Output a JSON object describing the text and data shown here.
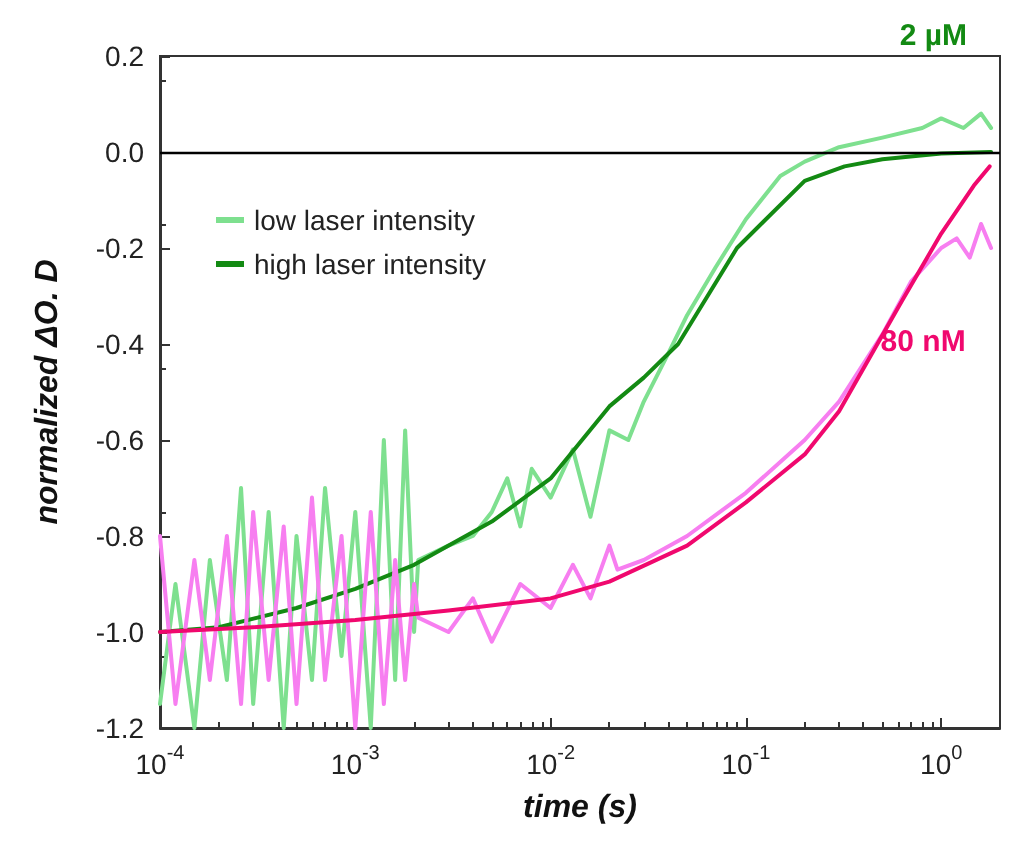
{
  "chart_data": {
    "type": "line",
    "xlabel": "time (s)",
    "ylabel": "normalized ΔO. D",
    "log": "x",
    "xlim": [
      0.0001,
      2
    ],
    "ylim": [
      -1.2,
      0.2
    ],
    "xticks": [
      {
        "value": 0.0001,
        "label": "10$^{-4}$"
      },
      {
        "value": 0.001,
        "label": "10$^{-3}$"
      },
      {
        "value": 0.01,
        "label": "10$^{-2}$"
      },
      {
        "value": 0.1,
        "label": "10$^{-1}$"
      },
      {
        "value": 1,
        "label": "10$^{0}$"
      }
    ],
    "yticks": [
      {
        "value": -1.2,
        "label": "-1.2"
      },
      {
        "value": -1,
        "label": "-1.0"
      },
      -0.8,
      -0.6,
      -0.4,
      -0.2,
      {
        "value": 0,
        "label": "0.0"
      },
      0.2
    ],
    "grid": false,
    "legend": "top left",
    "marker": "none",
    "line_style": "solid",
    "ref_lines": [
      {
        "axis": "y",
        "value": 0,
        "color": "#000000"
      }
    ],
    "annotations": [
      "2 µM",
      "80 nM"
    ],
    "series": [
      {
        "name": "low laser intensity",
        "color": "#7ee08f",
        "x": [
          0.0001,
          0.00012,
          0.00015,
          0.00018,
          0.00022,
          0.00026,
          0.0003,
          0.00036,
          0.00043,
          0.0005,
          0.0006,
          0.0007,
          0.00085,
          0.001,
          0.0012,
          0.0014,
          0.0016,
          0.0018,
          0.002,
          0.0021,
          0.003,
          0.004,
          0.005,
          0.006,
          0.007,
          0.008,
          0.01,
          0.013,
          0.016,
          0.02,
          0.025,
          0.03,
          0.04,
          0.05,
          0.07,
          0.1,
          0.15,
          0.2,
          0.3,
          0.5,
          0.8,
          1.0,
          1.3,
          1.6,
          1.8
        ],
        "values": [
          -1.15,
          -0.9,
          -1.2,
          -0.85,
          -1.1,
          -0.7,
          -1.15,
          -0.75,
          -1.2,
          -0.8,
          -1.1,
          -0.7,
          -1.05,
          -0.75,
          -1.2,
          -0.6,
          -1.1,
          -0.58,
          -1.0,
          -0.85,
          -0.82,
          -0.8,
          -0.75,
          -0.68,
          -0.78,
          -0.66,
          -0.72,
          -0.62,
          -0.76,
          -0.58,
          -0.6,
          -0.52,
          -0.42,
          -0.34,
          -0.24,
          -0.14,
          -0.05,
          -0.02,
          0.01,
          0.03,
          0.05,
          0.07,
          0.05,
          0.08,
          0.05
        ]
      },
      {
        "name": "high laser intensity",
        "color": "#138a13",
        "x": [
          0.0001,
          0.0002,
          0.0005,
          0.001,
          0.002,
          0.005,
          0.01,
          0.02,
          0.03,
          0.045,
          0.09,
          0.2,
          0.32,
          0.5,
          1.0,
          1.8
        ],
        "values": [
          -1.0,
          -0.99,
          -0.95,
          -0.91,
          -0.86,
          -0.77,
          -0.68,
          -0.53,
          -0.47,
          -0.4,
          -0.2,
          -0.06,
          -0.03,
          -0.015,
          -0.003,
          0.0
        ]
      },
      {
        "color": "#f77ef0",
        "x": [
          0.0001,
          0.00012,
          0.00015,
          0.00018,
          0.00022,
          0.00026,
          0.0003,
          0.00036,
          0.00043,
          0.0005,
          0.0006,
          0.0007,
          0.00085,
          0.001,
          0.0012,
          0.0014,
          0.0016,
          0.0018,
          0.002,
          0.0021,
          0.003,
          0.004,
          0.005,
          0.007,
          0.01,
          0.013,
          0.016,
          0.02,
          0.022,
          0.03,
          0.05,
          0.1,
          0.2,
          0.3,
          0.5,
          0.7,
          1.0,
          1.2,
          1.4,
          1.6,
          1.8
        ],
        "values": [
          -0.8,
          -1.15,
          -0.85,
          -1.1,
          -0.8,
          -1.15,
          -0.75,
          -1.1,
          -0.78,
          -1.15,
          -0.72,
          -1.1,
          -0.8,
          -1.2,
          -0.75,
          -1.15,
          -0.85,
          -1.1,
          -0.9,
          -0.97,
          -1.0,
          -0.93,
          -1.02,
          -0.9,
          -0.95,
          -0.86,
          -0.93,
          -0.82,
          -0.87,
          -0.85,
          -0.8,
          -0.71,
          -0.6,
          -0.52,
          -0.38,
          -0.27,
          -0.2,
          -0.18,
          -0.22,
          -0.15,
          -0.2
        ]
      },
      {
        "color": "#f0086e",
        "x": [
          0.0001,
          0.0003,
          0.001,
          0.003,
          0.01,
          0.02,
          0.05,
          0.1,
          0.2,
          0.3,
          0.63,
          1.0,
          1.47,
          1.77
        ],
        "values": [
          -1.0,
          -0.99,
          -0.975,
          -0.955,
          -0.93,
          -0.895,
          -0.82,
          -0.73,
          -0.63,
          -0.54,
          -0.31,
          -0.17,
          -0.07,
          -0.03
        ]
      }
    ]
  }
}
